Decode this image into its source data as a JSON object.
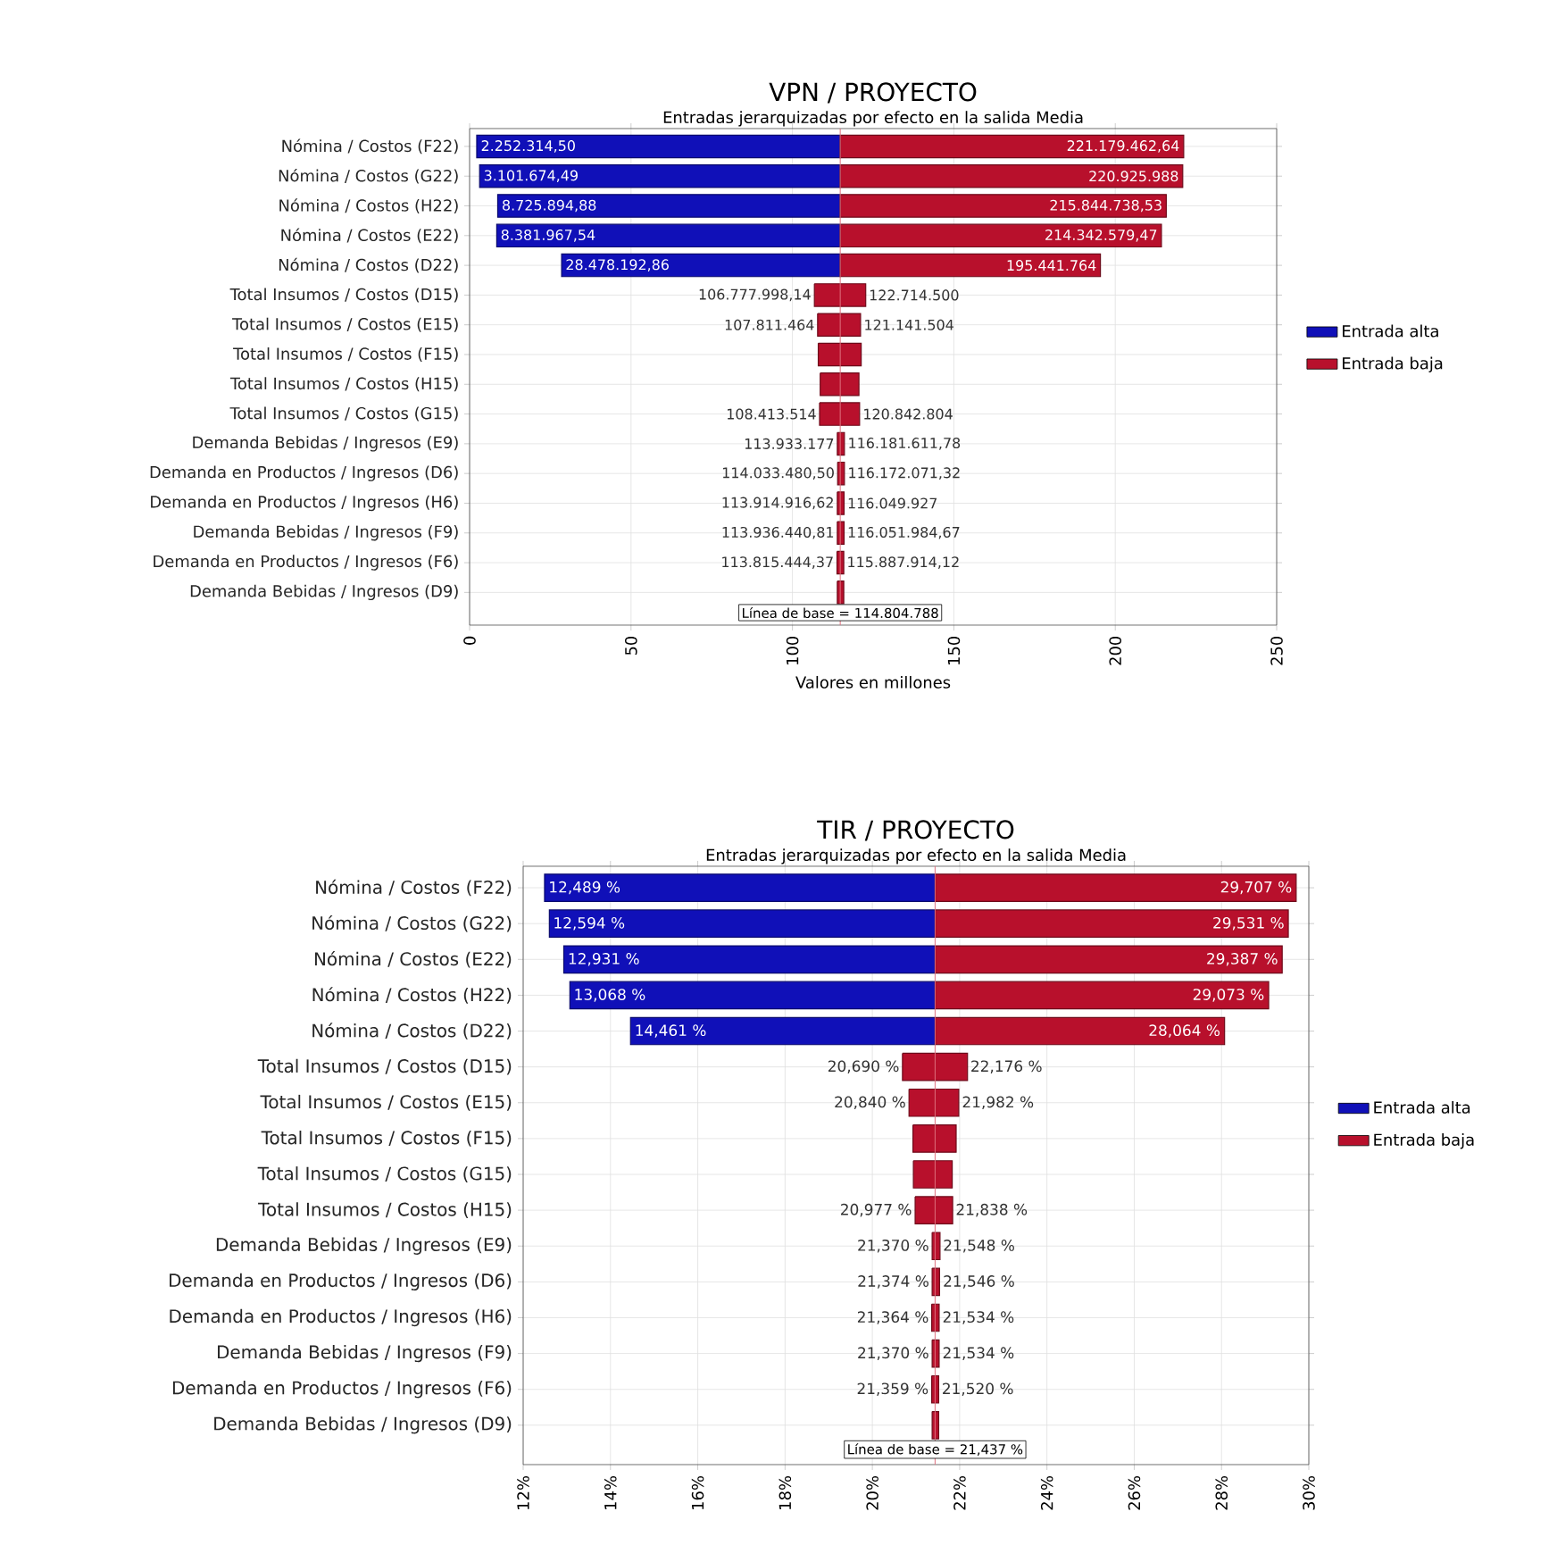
{
  "chart_data": [
    {
      "type": "bar",
      "orientation": "horizontal",
      "title": "VPN / PROYECTO",
      "subtitle": "Entradas jerarquizadas por efecto en la salida Media",
      "xlabel": "Valores en millones",
      "categories": [
        "Nómina / Costos (F22)",
        "Nómina / Costos (G22)",
        "Nómina / Costos (H22)",
        "Nómina / Costos (E22)",
        "Nómina / Costos (D22)",
        "Total Insumos / Costos (D15)",
        "Total Insumos / Costos (E15)",
        "Total Insumos / Costos (F15)",
        "Total Insumos / Costos (H15)",
        "Total Insumos / Costos (G15)",
        "Demanda Bebidas / Ingresos (E9)",
        "Demanda en Productos / Ingresos (D6)",
        "Demanda en Productos / Ingresos (H6)",
        "Demanda Bebidas / Ingresos (F9)",
        "Demanda en Productos / Ingresos (F6)",
        "Demanda Bebidas / Ingresos (D9)"
      ],
      "series": [
        {
          "name": "Entrada alta",
          "color": "#1010b8",
          "values": [
            -112.6,
            -111.7,
            -106.1,
            -106.4,
            -86.3,
            null,
            null,
            null,
            null,
            null,
            null,
            null,
            null,
            null,
            null,
            null
          ],
          "base": [
            114.8,
            114.8,
            114.8,
            114.8,
            114.8,
            null,
            null,
            null,
            null,
            null,
            null,
            null,
            null,
            null,
            null,
            null
          ]
        },
        {
          "name": "Entrada baja",
          "color": "#b8102c",
          "values": [
            106.4,
            106.1,
            101.0,
            99.5,
            80.6,
            15.9,
            13.3,
            13.3,
            12.0,
            12.4,
            2.2,
            2.1,
            2.1,
            2.1,
            2.1,
            2.0
          ],
          "base": [
            114.8,
            114.8,
            114.8,
            114.8,
            114.8,
            106.8,
            107.8,
            108.0,
            108.6,
            108.4,
            113.9,
            114.0,
            113.9,
            113.9,
            113.8,
            113.9
          ]
        }
      ],
      "annotations": [
        {
          "text": "2.252.314,50",
          "x": 2.2523145,
          "y": "Nómina / Costos (F22)"
        },
        {
          "text": "221.179.462,64",
          "x": 221.17946264,
          "y": "Nómina / Costos (F22)"
        },
        {
          "text": "3.101.674,49",
          "x": 3.10167449,
          "y": "Nómina / Costos (G22)"
        },
        {
          "text": "220.925.988",
          "x": 220.925988,
          "y": "Nómina / Costos (G22)"
        },
        {
          "text": "8.725.894,88",
          "x": 8.72589488,
          "y": "Nómina / Costos (H22)"
        },
        {
          "text": "215.844.738,53",
          "x": 215.84473853,
          "y": "Nómina / Costos (H22)"
        },
        {
          "text": "8.381.967,54",
          "x": 8.38196754,
          "y": "Nómina / Costos (E22)"
        },
        {
          "text": "214.342.579,47",
          "x": 214.34257947,
          "y": "Nómina / Costos (E22)"
        },
        {
          "text": "28.478.192,86",
          "x": 28.47819286,
          "y": "Nómina / Costos (D22)"
        },
        {
          "text": "195.441.764",
          "x": 195.441764,
          "y": "Nómina / Costos (D22)"
        },
        {
          "text": "106.777.998,14",
          "x": 106.77799814,
          "y": "Total Insumos / Costos (D15)"
        },
        {
          "text": "122.714.500",
          "x": 122.7145,
          "y": "Total Insumos / Costos (D15)"
        },
        {
          "text": "107.811.464",
          "x": 107.811464,
          "y": "Total Insumos / Costos (E15)"
        },
        {
          "text": "121.141.504",
          "x": 121.141504,
          "y": "Total Insumos / Costos (E15)"
        },
        {
          "text": "108.413.514",
          "x": 108.413514,
          "y": "Total Insumos / Costos (G15)"
        },
        {
          "text": "120.842.804",
          "x": 120.842804,
          "y": "Total Insumos / Costos (G15)"
        },
        {
          "text": "113.933.177",
          "x": 113.933177,
          "y": "Demanda Bebidas / Ingresos (E9)"
        },
        {
          "text": "116.181.611,78",
          "x": 116.18161178,
          "y": "Demanda Bebidas / Ingresos (E9)"
        },
        {
          "text": "114.033.480,50",
          "x": 114.0334805,
          "y": "Demanda en Productos / Ingresos (D6)"
        },
        {
          "text": "116.172.071,32",
          "x": 116.17207132,
          "y": "Demanda en Productos / Ingresos (D6)"
        },
        {
          "text": "113.914.916,62",
          "x": 113.91491662,
          "y": "Demanda en Productos / Ingresos (H6)"
        },
        {
          "text": "116.049.927",
          "x": 116.049927,
          "y": "Demanda en Productos / Ingresos (H6)"
        },
        {
          "text": "113.936.440,81",
          "x": 113.93644081,
          "y": "Demanda Bebidas / Ingresos (F9)"
        },
        {
          "text": "116.051.984,67",
          "x": 116.05198467,
          "y": "Demanda Bebidas / Ingresos (F9)"
        },
        {
          "text": "113.815.444,37",
          "x": 113.81544437,
          "y": "Demanda en Productos / Ingresos (F6)"
        },
        {
          "text": "115.887.914,12",
          "x": 115.88791412,
          "y": "Demanda en Productos / Ingresos (F6)"
        }
      ],
      "ref_lines": [
        {
          "axis": "x",
          "value": 114.804788,
          "label": "Línea de base = 114.804.788",
          "color": "#e07080"
        }
      ],
      "xlim": [
        0,
        250
      ],
      "xticks": [
        0,
        50,
        100,
        150,
        200,
        250
      ],
      "grid": true,
      "legend": "right"
    },
    {
      "type": "bar",
      "orientation": "horizontal",
      "title": "TIR / PROYECTO",
      "subtitle": "Entradas jerarquizadas por efecto en la salida Media",
      "categories": [
        "Nómina / Costos (F22)",
        "Nómina / Costos (G22)",
        "Nómina / Costos (E22)",
        "Nómina / Costos (H22)",
        "Nómina / Costos (D22)",
        "Total Insumos / Costos (D15)",
        "Total Insumos / Costos (E15)",
        "Total Insumos / Costos (F15)",
        "Total Insumos / Costos (G15)",
        "Total Insumos / Costos (H15)",
        "Demanda Bebidas / Ingresos (E9)",
        "Demanda en Productos / Ingresos (D6)",
        "Demanda en Productos / Ingresos (H6)",
        "Demanda Bebidas / Ingresos (F9)",
        "Demanda en Productos / Ingresos (F6)",
        "Demanda Bebidas / Ingresos (D9)"
      ],
      "series": [
        {
          "name": "Entrada alta",
          "color": "#1010b8",
          "values": [
            -8.95,
            -8.84,
            -8.51,
            -8.37,
            -6.98,
            null,
            null,
            null,
            null,
            null,
            null,
            null,
            null,
            null,
            null,
            null
          ],
          "base": [
            21.44,
            21.44,
            21.44,
            21.44,
            21.44,
            null,
            null,
            null,
            null,
            null,
            null,
            null,
            null,
            null,
            null,
            null
          ]
        },
        {
          "name": "Entrada baja",
          "color": "#b8102c",
          "values": [
            8.27,
            8.09,
            7.95,
            7.64,
            6.63,
            1.49,
            1.14,
            0.99,
            0.89,
            0.86,
            0.18,
            0.17,
            0.17,
            0.16,
            0.16,
            0.15
          ],
          "base": [
            21.44,
            21.44,
            21.44,
            21.44,
            21.44,
            20.69,
            20.84,
            20.93,
            20.94,
            20.98,
            21.37,
            21.37,
            21.36,
            21.37,
            21.36,
            21.37
          ]
        }
      ],
      "annotations": [
        {
          "text": "12,489 %",
          "x": 12.489,
          "y": "Nómina / Costos (F22)"
        },
        {
          "text": "29,707 %",
          "x": 29.707,
          "y": "Nómina / Costos (F22)"
        },
        {
          "text": "12,594 %",
          "x": 12.594,
          "y": "Nómina / Costos (G22)"
        },
        {
          "text": "29,531 %",
          "x": 29.531,
          "y": "Nómina / Costos (G22)"
        },
        {
          "text": "12,931 %",
          "x": 12.931,
          "y": "Nómina / Costos (E22)"
        },
        {
          "text": "29,387 %",
          "x": 29.387,
          "y": "Nómina / Costos (E22)"
        },
        {
          "text": "13,068 %",
          "x": 13.068,
          "y": "Nómina / Costos (H22)"
        },
        {
          "text": "29,073 %",
          "x": 29.073,
          "y": "Nómina / Costos (H22)"
        },
        {
          "text": "14,461 %",
          "x": 14.461,
          "y": "Nómina / Costos (D22)"
        },
        {
          "text": "28,064 %",
          "x": 28.064,
          "y": "Nómina / Costos (D22)"
        },
        {
          "text": "20,690 %",
          "x": 20.69,
          "y": "Total Insumos / Costos (D15)"
        },
        {
          "text": "22,176 %",
          "x": 22.176,
          "y": "Total Insumos / Costos (D15)"
        },
        {
          "text": "20,840 %",
          "x": 20.84,
          "y": "Total Insumos / Costos (E15)"
        },
        {
          "text": "21,982 %",
          "x": 21.982,
          "y": "Total Insumos / Costos (E15)"
        },
        {
          "text": "20,977 %",
          "x": 20.977,
          "y": "Total Insumos / Costos (H15)"
        },
        {
          "text": "21,838 %",
          "x": 21.838,
          "y": "Total Insumos / Costos (H15)"
        },
        {
          "text": "21,370 %",
          "x": 21.37,
          "y": "Demanda Bebidas / Ingresos (E9)"
        },
        {
          "text": "21,548 %",
          "x": 21.548,
          "y": "Demanda Bebidas / Ingresos (E9)"
        },
        {
          "text": "21,374 %",
          "x": 21.374,
          "y": "Demanda en Productos / Ingresos (D6)"
        },
        {
          "text": "21,546 %",
          "x": 21.546,
          "y": "Demanda en Productos / Ingresos (D6)"
        },
        {
          "text": "21,364 %",
          "x": 21.364,
          "y": "Demanda en Productos / Ingresos (H6)"
        },
        {
          "text": "21,534 %",
          "x": 21.534,
          "y": "Demanda en Productos / Ingresos (H6)"
        },
        {
          "text": "21,370 %",
          "x": 21.37,
          "y": "Demanda Bebidas / Ingresos (F9)"
        },
        {
          "text": "21,534 %",
          "x": 21.534,
          "y": "Demanda Bebidas / Ingresos (F9)"
        },
        {
          "text": "21,359 %",
          "x": 21.359,
          "y": "Demanda en Productos / Ingresos (F6)"
        },
        {
          "text": "21,520 %",
          "x": 21.52,
          "y": "Demanda en Productos / Ingresos (F6)"
        }
      ],
      "ref_lines": [
        {
          "axis": "x",
          "value": 21.437,
          "label": "Línea de base = 21,437 %",
          "color": "#e07080"
        }
      ],
      "xlim": [
        12,
        30
      ],
      "xticks": [
        {
          "value": 12,
          "label": "12%"
        },
        {
          "value": 14,
          "label": "14%"
        },
        {
          "value": 16,
          "label": "16%"
        },
        {
          "value": 18,
          "label": "18%"
        },
        {
          "value": 20,
          "label": "20%"
        },
        {
          "value": 22,
          "label": "22%"
        },
        {
          "value": 24,
          "label": "24%"
        },
        {
          "value": 26,
          "label": "26%"
        },
        {
          "value": 28,
          "label": "28%"
        },
        {
          "value": 30,
          "label": "30%"
        }
      ],
      "grid": true,
      "legend": "right"
    }
  ]
}
